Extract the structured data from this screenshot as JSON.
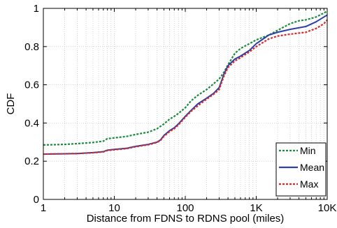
{
  "chart_data": {
    "type": "line",
    "xlabel": "Distance from FDNS to RDNS pool (miles)",
    "ylabel": "CDF",
    "xscale": "log",
    "xlim": [
      1,
      10000
    ],
    "ylim": [
      0,
      1
    ],
    "grid": true,
    "legend_position": "bottom-right",
    "x_ticks": [
      {
        "value": 1,
        "label": "1"
      },
      {
        "value": 10,
        "label": "10"
      },
      {
        "value": 100,
        "label": "100"
      },
      {
        "value": 1000,
        "label": "1K"
      },
      {
        "value": 10000,
        "label": "10K"
      }
    ],
    "y_ticks": [
      {
        "value": 0,
        "label": "0"
      },
      {
        "value": 0.2,
        "label": "0.2"
      },
      {
        "value": 0.4,
        "label": "0.4"
      },
      {
        "value": 0.6,
        "label": "0.6"
      },
      {
        "value": 0.8,
        "label": "0.8"
      },
      {
        "value": 1,
        "label": "1"
      }
    ],
    "series": [
      {
        "name": "Min",
        "color": "#1a8a3c",
        "dash": "dotted",
        "points": [
          [
            1,
            0.285
          ],
          [
            2,
            0.288
          ],
          [
            3,
            0.292
          ],
          [
            5,
            0.298
          ],
          [
            7,
            0.305
          ],
          [
            8,
            0.318
          ],
          [
            10,
            0.322
          ],
          [
            15,
            0.33
          ],
          [
            20,
            0.34
          ],
          [
            30,
            0.352
          ],
          [
            40,
            0.37
          ],
          [
            50,
            0.395
          ],
          [
            60,
            0.42
          ],
          [
            70,
            0.435
          ],
          [
            80,
            0.45
          ],
          [
            100,
            0.48
          ],
          [
            120,
            0.515
          ],
          [
            150,
            0.545
          ],
          [
            200,
            0.575
          ],
          [
            250,
            0.605
          ],
          [
            300,
            0.63
          ],
          [
            350,
            0.665
          ],
          [
            400,
            0.705
          ],
          [
            500,
            0.765
          ],
          [
            600,
            0.79
          ],
          [
            800,
            0.815
          ],
          [
            1000,
            0.835
          ],
          [
            1500,
            0.86
          ],
          [
            2000,
            0.885
          ],
          [
            3000,
            0.92
          ],
          [
            4000,
            0.935
          ],
          [
            5000,
            0.94
          ],
          [
            7000,
            0.955
          ],
          [
            10000,
            0.985
          ]
        ]
      },
      {
        "name": "Mean",
        "color": "#2b3fa8",
        "dash": "solid",
        "points": [
          [
            1,
            0.237
          ],
          [
            3,
            0.24
          ],
          [
            5,
            0.245
          ],
          [
            7,
            0.25
          ],
          [
            8,
            0.258
          ],
          [
            10,
            0.262
          ],
          [
            15,
            0.268
          ],
          [
            20,
            0.278
          ],
          [
            30,
            0.288
          ],
          [
            40,
            0.3
          ],
          [
            45,
            0.312
          ],
          [
            50,
            0.335
          ],
          [
            60,
            0.36
          ],
          [
            70,
            0.375
          ],
          [
            80,
            0.395
          ],
          [
            100,
            0.435
          ],
          [
            120,
            0.465
          ],
          [
            150,
            0.5
          ],
          [
            200,
            0.53
          ],
          [
            250,
            0.555
          ],
          [
            300,
            0.585
          ],
          [
            350,
            0.655
          ],
          [
            400,
            0.7
          ],
          [
            500,
            0.735
          ],
          [
            600,
            0.75
          ],
          [
            800,
            0.78
          ],
          [
            1000,
            0.815
          ],
          [
            1500,
            0.86
          ],
          [
            2000,
            0.875
          ],
          [
            3000,
            0.89
          ],
          [
            5000,
            0.905
          ],
          [
            7000,
            0.93
          ],
          [
            9000,
            0.955
          ],
          [
            10000,
            0.965
          ]
        ]
      },
      {
        "name": "Max",
        "color": "#d42a2a",
        "dash": "dotted",
        "points": [
          [
            1,
            0.237
          ],
          [
            3,
            0.24
          ],
          [
            5,
            0.244
          ],
          [
            7,
            0.249
          ],
          [
            8,
            0.256
          ],
          [
            10,
            0.26
          ],
          [
            15,
            0.266
          ],
          [
            20,
            0.276
          ],
          [
            30,
            0.286
          ],
          [
            40,
            0.298
          ],
          [
            45,
            0.31
          ],
          [
            50,
            0.33
          ],
          [
            60,
            0.355
          ],
          [
            70,
            0.37
          ],
          [
            80,
            0.39
          ],
          [
            100,
            0.43
          ],
          [
            120,
            0.46
          ],
          [
            150,
            0.49
          ],
          [
            200,
            0.525
          ],
          [
            250,
            0.55
          ],
          [
            300,
            0.575
          ],
          [
            350,
            0.645
          ],
          [
            400,
            0.69
          ],
          [
            500,
            0.725
          ],
          [
            600,
            0.742
          ],
          [
            800,
            0.772
          ],
          [
            1000,
            0.8
          ],
          [
            1500,
            0.84
          ],
          [
            2000,
            0.855
          ],
          [
            3000,
            0.865
          ],
          [
            5000,
            0.875
          ],
          [
            7000,
            0.895
          ],
          [
            9000,
            0.92
          ],
          [
            10000,
            0.94
          ]
        ]
      }
    ]
  }
}
